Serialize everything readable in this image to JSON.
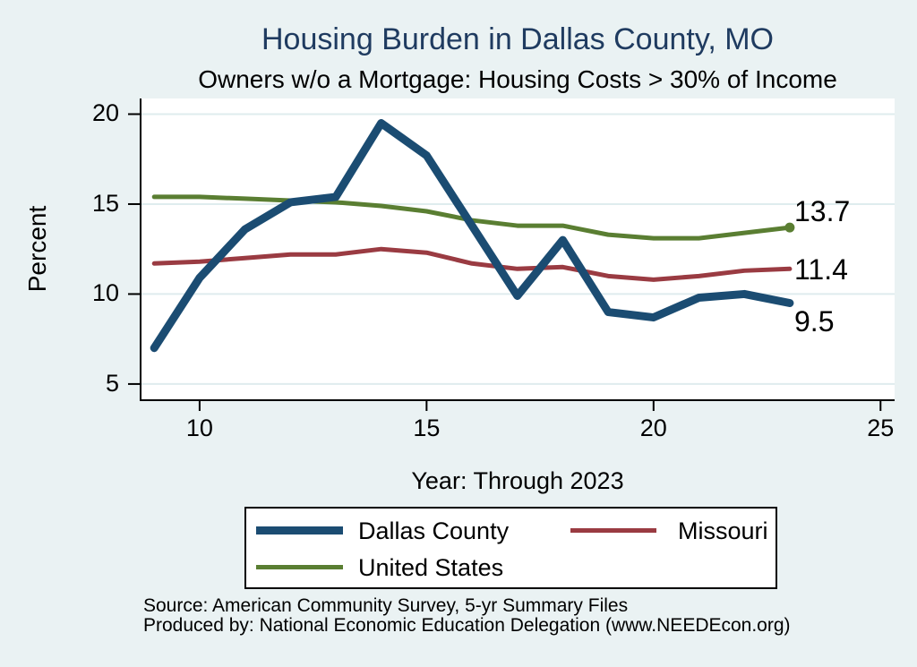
{
  "header": {
    "title": "Housing Burden in Dallas County, MO",
    "subtitle": "Owners w/o a Mortgage: Housing Costs > 30% of Income"
  },
  "chart_data": {
    "type": "line",
    "x": [
      9,
      10,
      11,
      12,
      13,
      14,
      15,
      16,
      17,
      18,
      19,
      20,
      21,
      22,
      23
    ],
    "x_note": "two-digit years 2009-2023 (ACS 5-yr estimates)",
    "series": [
      {
        "name": "Dallas County",
        "color": "#1b4c72",
        "stroke_width": 9,
        "values": [
          7.0,
          10.9,
          13.6,
          15.1,
          15.4,
          19.5,
          17.7,
          13.8,
          9.9,
          13.0,
          9.0,
          8.7,
          9.8,
          10.0,
          9.5
        ],
        "end_label": "9.5",
        "end_marker": false
      },
      {
        "name": "Missouri",
        "color": "#9a3b42",
        "stroke_width": 5,
        "values": [
          11.7,
          11.8,
          12.0,
          12.2,
          12.2,
          12.5,
          12.3,
          11.7,
          11.4,
          11.5,
          11.0,
          10.8,
          11.0,
          11.3,
          11.4
        ],
        "end_label": "11.4",
        "end_marker": false
      },
      {
        "name": "United States",
        "color": "#5a7e32",
        "stroke_width": 5,
        "values": [
          15.4,
          15.4,
          15.3,
          15.2,
          15.1,
          14.9,
          14.6,
          14.1,
          13.8,
          13.8,
          13.3,
          13.1,
          13.1,
          13.4,
          13.7
        ],
        "end_label": "13.7",
        "end_marker": true
      }
    ],
    "xlabel": "Year: Through 2023",
    "ylabel": "Percent",
    "xticks": [
      10,
      15,
      20,
      25
    ],
    "yticks": [
      5,
      10,
      15,
      20
    ],
    "xlim": [
      8.7,
      25.31
    ],
    "ylim": [
      4.1,
      20.87
    ],
    "grid": "horizontal only",
    "legend_position": "bottom"
  },
  "colors": {
    "background": "#eaf2f3",
    "plot_background": "#ffffff",
    "gridline": "#dfecee",
    "axis": "#000000",
    "title": "#1f3b60"
  },
  "footer": {
    "source": "Source: American Community Survey, 5-yr Summary Files",
    "produced_by": "Produced by: National Economic Education Delegation (www.NEEDEcon.org)"
  }
}
